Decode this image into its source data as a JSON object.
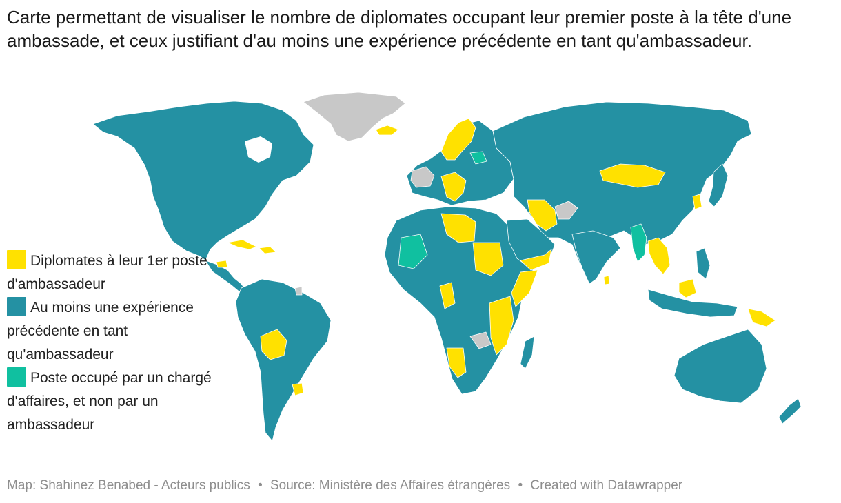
{
  "title": "Carte permettant de visualiser le nombre de diplomates occupant leur premier poste à la tête d'une ambassade, et ceux justifiant d'au moins une expérience précédente en tant qu'ambassadeur.",
  "colors": {
    "first_post": "#ffe100",
    "experienced": "#2491a3",
    "charge_affaires": "#10c0a0",
    "no_data": "#c8c8c8"
  },
  "legend": [
    {
      "key": "first_post",
      "label": "Diplomates à leur 1er poste d'ambassadeur"
    },
    {
      "key": "experienced",
      "label": "Au moins une expérience précédente en tant qu'ambassadeur"
    },
    {
      "key": "charge_affaires",
      "label": "Poste occupé par un chargé d'affaires, et non par un ambassadeur"
    }
  ],
  "footer": {
    "map_credit": "Map: Shahinez Benabed - Acteurs publics",
    "source": "Source: Ministère des Affaires étrangères",
    "tool": "Created with Datawrapper"
  }
}
